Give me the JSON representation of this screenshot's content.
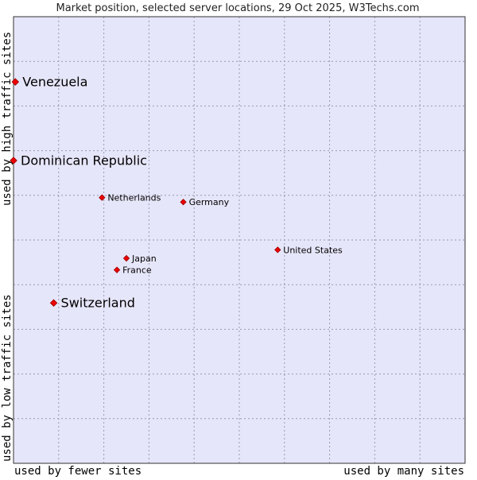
{
  "chart_data": {
    "type": "scatter",
    "title": "Market position, selected server locations, 29 Oct 2025, W3Techs.com",
    "xlabel_left": "used by fewer sites",
    "xlabel_right": "used by many sites",
    "ylabel_top": "used by high traffic sites",
    "ylabel_bottom": "used by low traffic sites",
    "xlim": [
      0,
      100
    ],
    "ylim": [
      0,
      100
    ],
    "grid": true,
    "points": [
      {
        "label": "Venezuela",
        "x": 0.4,
        "y": 85.4,
        "highlight": true
      },
      {
        "label": "Dominican Republic",
        "x": 0,
        "y": 67.8,
        "highlight": true
      },
      {
        "label": "Netherlands",
        "x": 19.6,
        "y": 59.5,
        "highlight": false
      },
      {
        "label": "Germany",
        "x": 37.6,
        "y": 58.5,
        "highlight": false
      },
      {
        "label": "United States",
        "x": 58.5,
        "y": 47.8,
        "highlight": false
      },
      {
        "label": "Japan",
        "x": 25.0,
        "y": 45.9,
        "highlight": false
      },
      {
        "label": "France",
        "x": 22.9,
        "y": 43.3,
        "highlight": false
      },
      {
        "label": "Switzerland",
        "x": 8.9,
        "y": 35.9,
        "highlight": true
      }
    ]
  },
  "colors": {
    "plot_bg": "#e6e6fa",
    "grid": "#9a9ab0",
    "border": "#333333",
    "marker": "#ee0000",
    "marker_edge": "#990000"
  }
}
